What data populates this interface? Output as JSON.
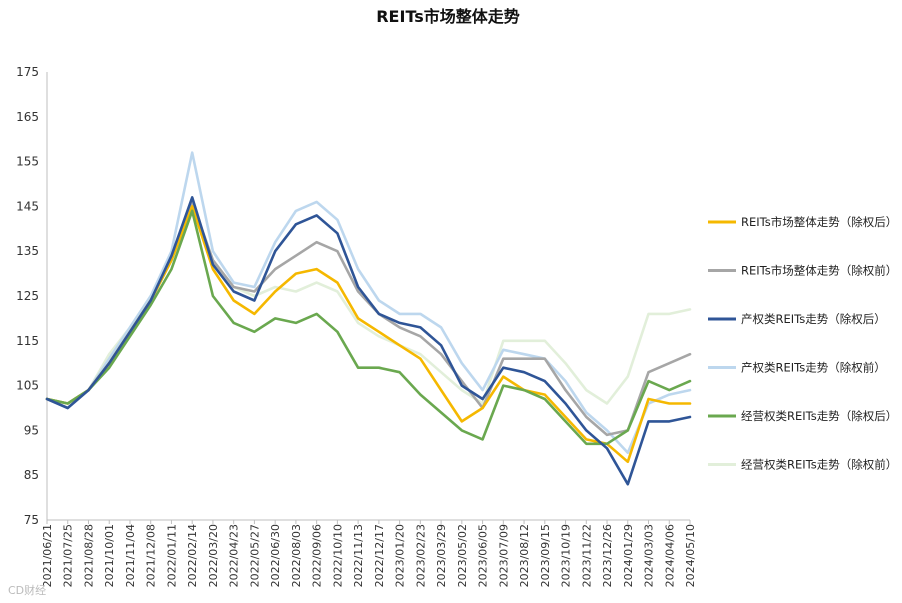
{
  "chart_data": {
    "type": "line",
    "title": "REITs市场整体走势",
    "xlabel": "",
    "ylabel": "",
    "ylim": [
      75,
      175
    ],
    "yticks": [
      75,
      85,
      95,
      105,
      115,
      125,
      135,
      145,
      155,
      165,
      175
    ],
    "legend_position": "right",
    "categories": [
      "2021/06/21",
      "2021/07/25",
      "2021/08/28",
      "2021/10/01",
      "2021/11/04",
      "2021/12/08",
      "2022/01/11",
      "2022/02/14",
      "2022/03/20",
      "2022/04/23",
      "2022/05/27",
      "2022/06/30",
      "2022/08/03",
      "2022/09/06",
      "2022/10/10",
      "2022/11/13",
      "2022/12/17",
      "2023/01/20",
      "2023/02/23",
      "2023/03/29",
      "2023/05/02",
      "2023/06/05",
      "2023/07/09",
      "2023/08/12",
      "2023/09/15",
      "2023/10/19",
      "2023/11/22",
      "2023/12/26",
      "2024/01/29",
      "2024/03/03",
      "2024/04/06",
      "2024/05/10"
    ],
    "series": [
      {
        "name": "REITs市场整体走势（除权后）",
        "color": "#F5B800",
        "values": [
          102,
          101,
          104,
          110,
          117,
          124,
          133,
          145,
          131,
          124,
          121,
          126,
          130,
          131,
          128,
          120,
          117,
          114,
          111,
          104,
          97,
          100,
          107,
          104,
          103,
          98,
          93,
          92,
          88,
          102,
          101,
          101
        ]
      },
      {
        "name": "REITs市场整体走势（除权前）",
        "color": "#A6A6A6",
        "values": [
          102,
          101,
          104,
          110,
          117,
          124,
          133,
          146,
          133,
          127,
          126,
          131,
          134,
          137,
          135,
          126,
          121,
          118,
          116,
          112,
          106,
          100,
          111,
          111,
          111,
          104,
          98,
          94,
          95,
          108,
          110,
          112
        ]
      },
      {
        "name": "产权类REITs走势（除权后）",
        "color": "#2F5597",
        "values": [
          102,
          100,
          104,
          110,
          117,
          124,
          134,
          147,
          132,
          126,
          124,
          135,
          141,
          143,
          139,
          127,
          121,
          119,
          118,
          114,
          105,
          102,
          109,
          108,
          106,
          101,
          95,
          91,
          83,
          97,
          97,
          98
        ]
      },
      {
        "name": "产权类REITs走势（除权前）",
        "color": "#BDD7EE",
        "values": [
          102,
          100,
          104,
          111,
          118,
          125,
          135,
          157,
          135,
          128,
          127,
          137,
          144,
          146,
          142,
          131,
          124,
          121,
          121,
          118,
          110,
          104,
          113,
          112,
          111,
          106,
          99,
          95,
          90,
          101,
          103,
          104
        ]
      },
      {
        "name": "经营权类REITs走势（除权后）",
        "color": "#6AA84F",
        "values": [
          102,
          101,
          104,
          109,
          116,
          123,
          131,
          144,
          125,
          119,
          117,
          120,
          119,
          121,
          117,
          109,
          109,
          108,
          103,
          99,
          95,
          93,
          105,
          104,
          102,
          97,
          92,
          92,
          95,
          106,
          104,
          106
        ]
      },
      {
        "name": "经营权类REITs走势（除权前）",
        "color": "#E2EFDA",
        "values": [
          102,
          101,
          104,
          112,
          118,
          125,
          133,
          146,
          133,
          127,
          125,
          127,
          126,
          128,
          126,
          119,
          116,
          114,
          112,
          108,
          104,
          101,
          115,
          115,
          115,
          110,
          104,
          101,
          107,
          121,
          121,
          122
        ]
      }
    ]
  },
  "watermark": "CD财经"
}
